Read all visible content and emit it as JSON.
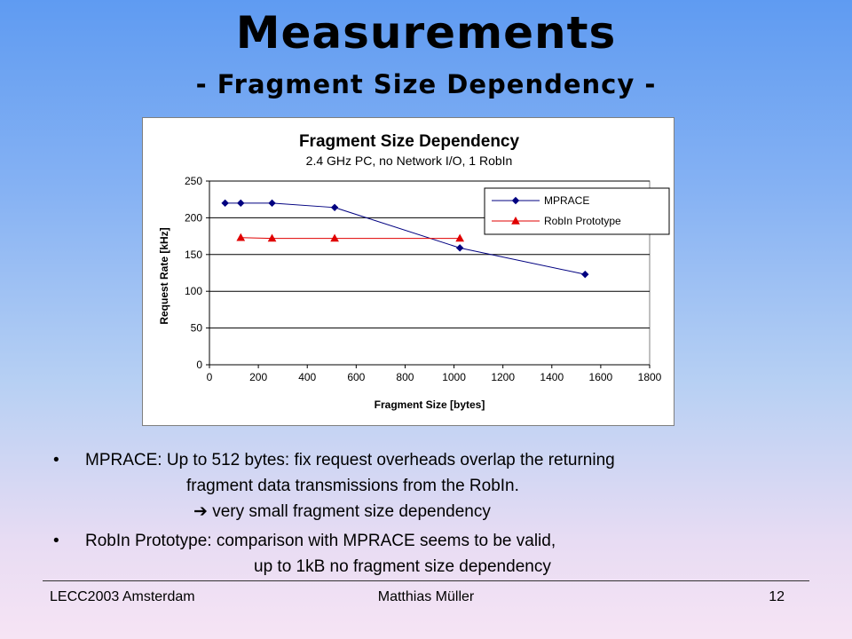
{
  "slide": {
    "title": "Measurements",
    "subtitle": "- Fragment Size Dependency -"
  },
  "chart_data": {
    "type": "line",
    "title": "Fragment Size Dependency",
    "subtitle": "2.4 GHz PC, no Network I/O, 1 RobIn",
    "xlabel": "Fragment Size [bytes]",
    "ylabel": "Request Rate [kHz]",
    "xlim": [
      0,
      1800
    ],
    "ylim": [
      0,
      250
    ],
    "xticks": [
      0,
      200,
      400,
      600,
      800,
      1000,
      1200,
      1400,
      1600,
      1800
    ],
    "yticks": [
      0,
      50,
      100,
      150,
      200,
      250
    ],
    "grid": "horizontal",
    "legend_position": "top-right",
    "series": [
      {
        "name": "MPRACE",
        "color": "#000080",
        "marker": "diamond",
        "x": [
          64,
          128,
          256,
          512,
          1024,
          1536
        ],
        "y": [
          220,
          220,
          220,
          214,
          159,
          123
        ]
      },
      {
        "name": "RobIn Prototype",
        "color": "#e00000",
        "marker": "triangle",
        "x": [
          128,
          256,
          512,
          1024
        ],
        "y": [
          173,
          172,
          172,
          172
        ]
      }
    ]
  },
  "bullets": {
    "b1_line1": "MPRACE: Up to 512 bytes: fix request overheads overlap the returning",
    "b1_line2": "fragment data transmissions from the RobIn.",
    "b1_arrow": "➔",
    "b1_line3": "very small fragment size dependency",
    "b2_line1": "RobIn Prototype: comparison with MPRACE seems to be valid,",
    "b2_line2": "up to 1kB no fragment size dependency",
    "bullet_char": "•"
  },
  "footer": {
    "left": "LECC2003 Amsterdam",
    "center": "Matthias Müller",
    "page": "12"
  }
}
